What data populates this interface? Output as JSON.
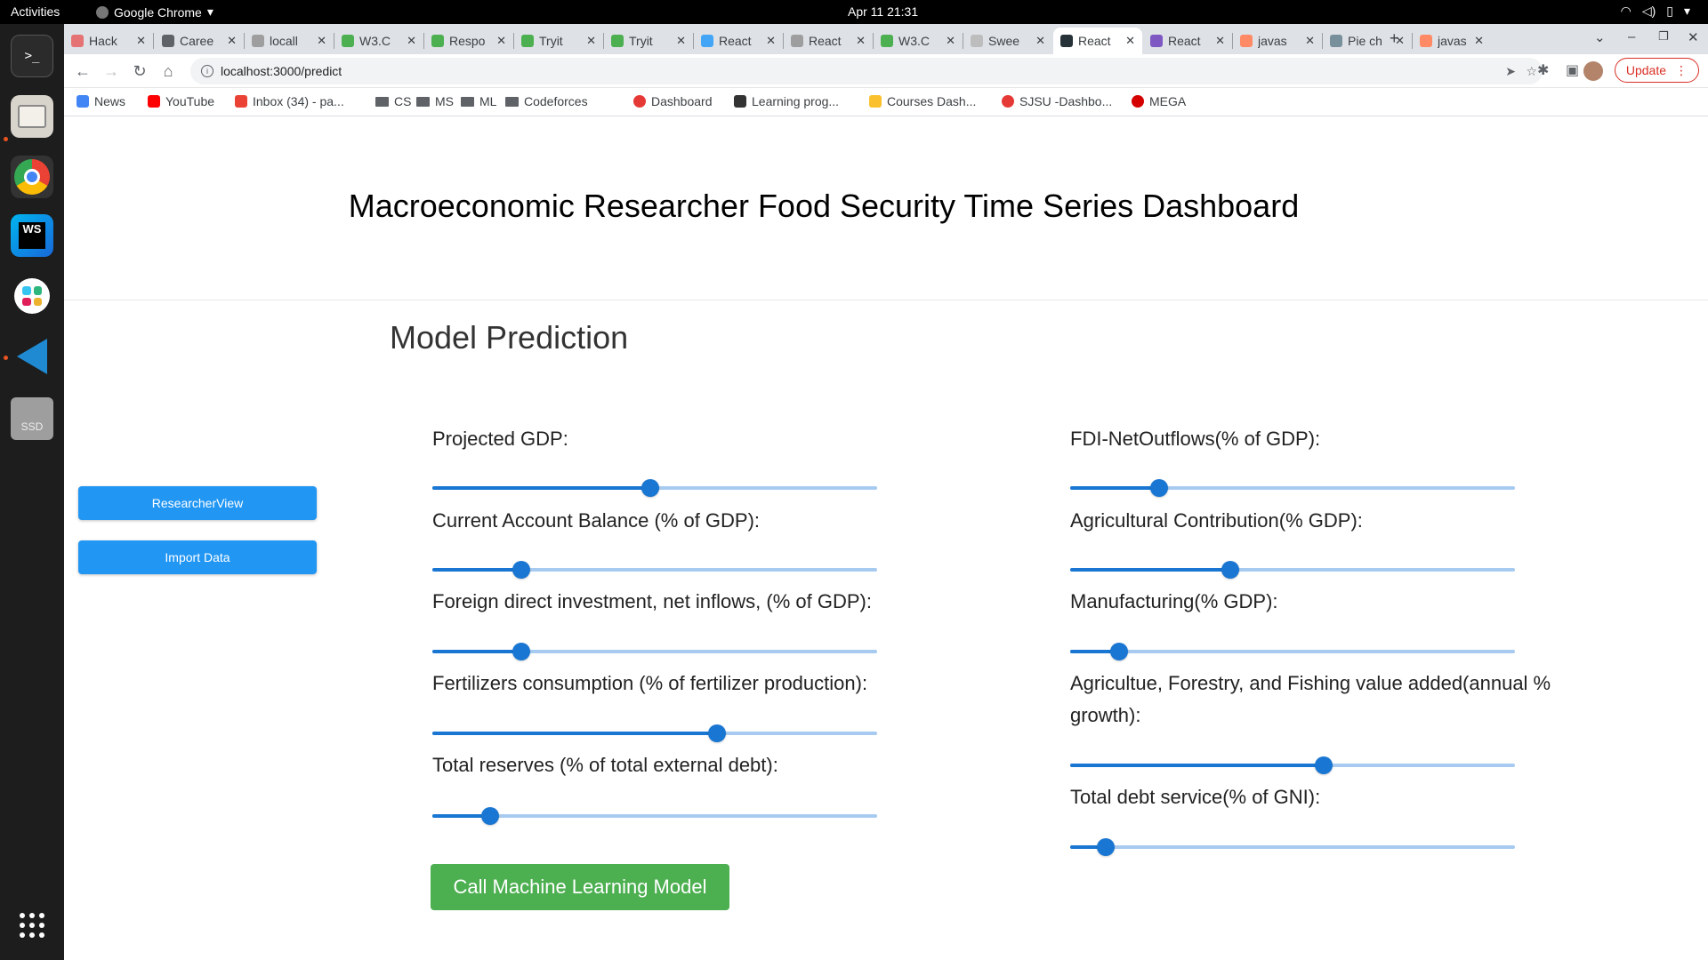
{
  "system_bar": {
    "activities": "Activities",
    "app_name": "Google Chrome",
    "clock": "Apr 11  21:31"
  },
  "dock": {
    "items": [
      "terminal-icon",
      "files-icon",
      "chrome-icon",
      "webstorm-icon",
      "slack-icon",
      "vscode-icon",
      "ssd-icon",
      "app-grid-icon"
    ],
    "ssd_label": "SSD",
    "ws_label": "WS"
  },
  "browser": {
    "tabs": [
      {
        "title": "Hack",
        "color": "#e57373"
      },
      {
        "title": "Caree",
        "color": "#5f6368"
      },
      {
        "title": "locall",
        "color": "#9e9e9e"
      },
      {
        "title": "W3.C",
        "color": "#4caf50"
      },
      {
        "title": "Respo",
        "color": "#4caf50"
      },
      {
        "title": "Tryit",
        "color": "#4caf50"
      },
      {
        "title": "Tryit",
        "color": "#4caf50"
      },
      {
        "title": "React",
        "color": "#42a5f5"
      },
      {
        "title": "React",
        "color": "#9e9e9e"
      },
      {
        "title": "W3.C",
        "color": "#4caf50"
      },
      {
        "title": "Swee",
        "color": "#bdbdbd"
      },
      {
        "title": "React",
        "color": "#263238",
        "active": true
      },
      {
        "title": "React",
        "color": "#7e57c2"
      },
      {
        "title": "javas",
        "color": "#ff8a65"
      },
      {
        "title": "Pie ch",
        "color": "#78909c"
      },
      {
        "title": "javas",
        "color": "#ff8a65"
      }
    ],
    "url": "localhost:3000/predict",
    "update_label": "Update",
    "bookmarks": [
      {
        "label": "News",
        "icon": "news-icon",
        "color": "#4285f4"
      },
      {
        "label": "YouTube",
        "icon": "youtube-icon",
        "color": "#ff0000"
      },
      {
        "label": "Inbox (34) - pa...",
        "icon": "gmail-icon",
        "color": "#ea4335"
      },
      {
        "label": "CS",
        "icon": "folder-icon"
      },
      {
        "label": "MS",
        "icon": "folder-icon"
      },
      {
        "label": "ML",
        "icon": "folder-icon"
      },
      {
        "label": "Codeforces",
        "icon": "folder-icon"
      },
      {
        "label": "Dashboard",
        "icon": "dashboard-icon",
        "color": "#e53935"
      },
      {
        "label": "Learning prog...",
        "icon": "learning-icon",
        "color": "#333333"
      },
      {
        "label": "Courses Dash...",
        "icon": "crown-icon",
        "color": "#fbc02d"
      },
      {
        "label": "SJSU -Dashbo...",
        "icon": "sjsu-icon",
        "color": "#e53935"
      },
      {
        "label": "MEGA",
        "icon": "mega-icon",
        "color": "#d50000"
      }
    ]
  },
  "page": {
    "title": "Macroeconomic Researcher Food Security Time Series Dashboard",
    "section_title": "Model Prediction",
    "sidebar_buttons": [
      "ResearcherView",
      "Import Data"
    ],
    "left_fields": [
      {
        "label": "Projected GDP:",
        "level": 0.49
      },
      {
        "label": "Current Account Balance (% of GDP):",
        "level": 0.2
      },
      {
        "label": "Foreign direct investment, net inflows, (% of GDP):",
        "level": 0.2
      },
      {
        "label": "Fertilizers consumption (% of fertilizer production):",
        "level": 0.64
      },
      {
        "label": "Total reserves (% of total external debt):",
        "level": 0.13
      }
    ],
    "right_fields": [
      {
        "label": "FDI-NetOutflows(% of GDP):",
        "level": 0.2
      },
      {
        "label": "Agricultural Contribution(% GDP):",
        "level": 0.36
      },
      {
        "label": "Manufacturing(% GDP):",
        "level": 0.11
      },
      {
        "label": "Agricultue, Forestry, and Fishing value added(annual % growth):",
        "level": 0.57
      },
      {
        "label": "Total debt service(% of GNI):",
        "level": 0.08
      }
    ],
    "submit_label": "Call Machine Learning Model",
    "colors": {
      "primary": "#2196f3",
      "slider": "#1976d2",
      "submit": "#4caf50"
    }
  }
}
